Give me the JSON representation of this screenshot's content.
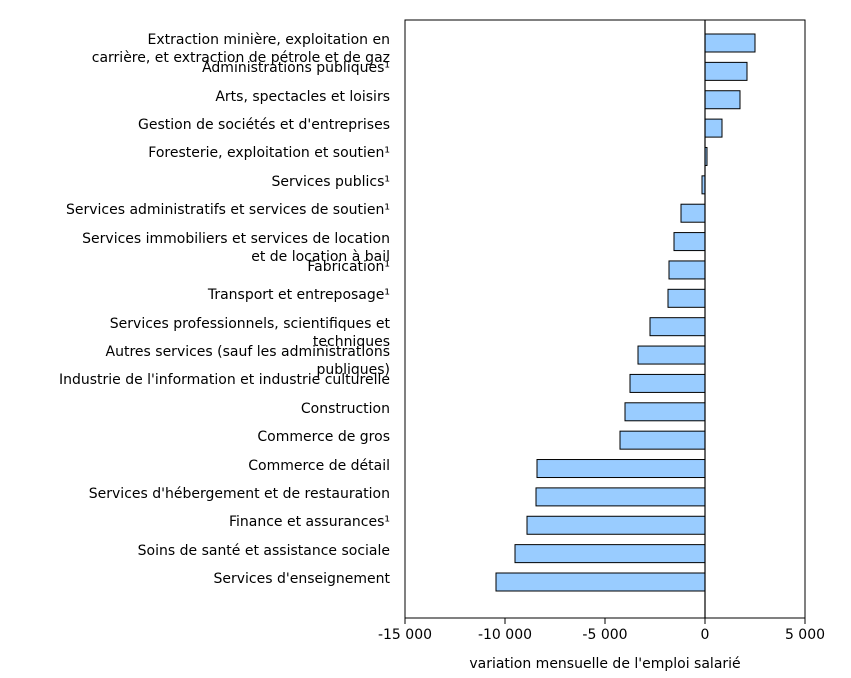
{
  "chart_data": {
    "type": "bar",
    "orientation": "horizontal",
    "x_label": "variation mensuelle de l'emploi salarié",
    "categories": [
      "Extraction minière, exploitation en\ncarrière, et extraction de pétrole et de gaz",
      "Administrations publiques¹",
      "Arts, spectacles et loisirs",
      "Gestion de sociétés et d'entreprises",
      "Foresterie, exploitation et soutien¹",
      "Services publics¹",
      "Services administratifs et services de soutien¹",
      "Services immobiliers et services de location\net de location à bail",
      "Fabrication¹",
      "Transport et entreposage¹",
      "Services professionnels, scientifiques et\ntechniques",
      "Autres services (sauf les administrations\npubliques)",
      "Industrie de l'information et industrie culturelle",
      "Construction",
      "Commerce de gros",
      "Commerce de détail",
      "Services d'hébergement et de restauration",
      "Finance et assurances¹",
      "Soins de santé et assistance sociale",
      "Services d'enseignement"
    ],
    "values": [
      2500,
      2100,
      1750,
      850,
      100,
      -150,
      -1200,
      -1550,
      -1800,
      -1850,
      -2750,
      -3350,
      -3750,
      -4000,
      -4250,
      -8400,
      -8450,
      -8900,
      -9500,
      -10450
    ],
    "color": "#99ccff",
    "xlim": [
      -15000,
      5000
    ],
    "xticks": [
      {
        "value": -15000,
        "label": "-15 000"
      },
      {
        "value": -10000,
        "label": "-10 000"
      },
      {
        "value": -5000,
        "label": "-5 000"
      },
      0,
      {
        "value": 5000,
        "label": "5 000"
      }
    ]
  }
}
